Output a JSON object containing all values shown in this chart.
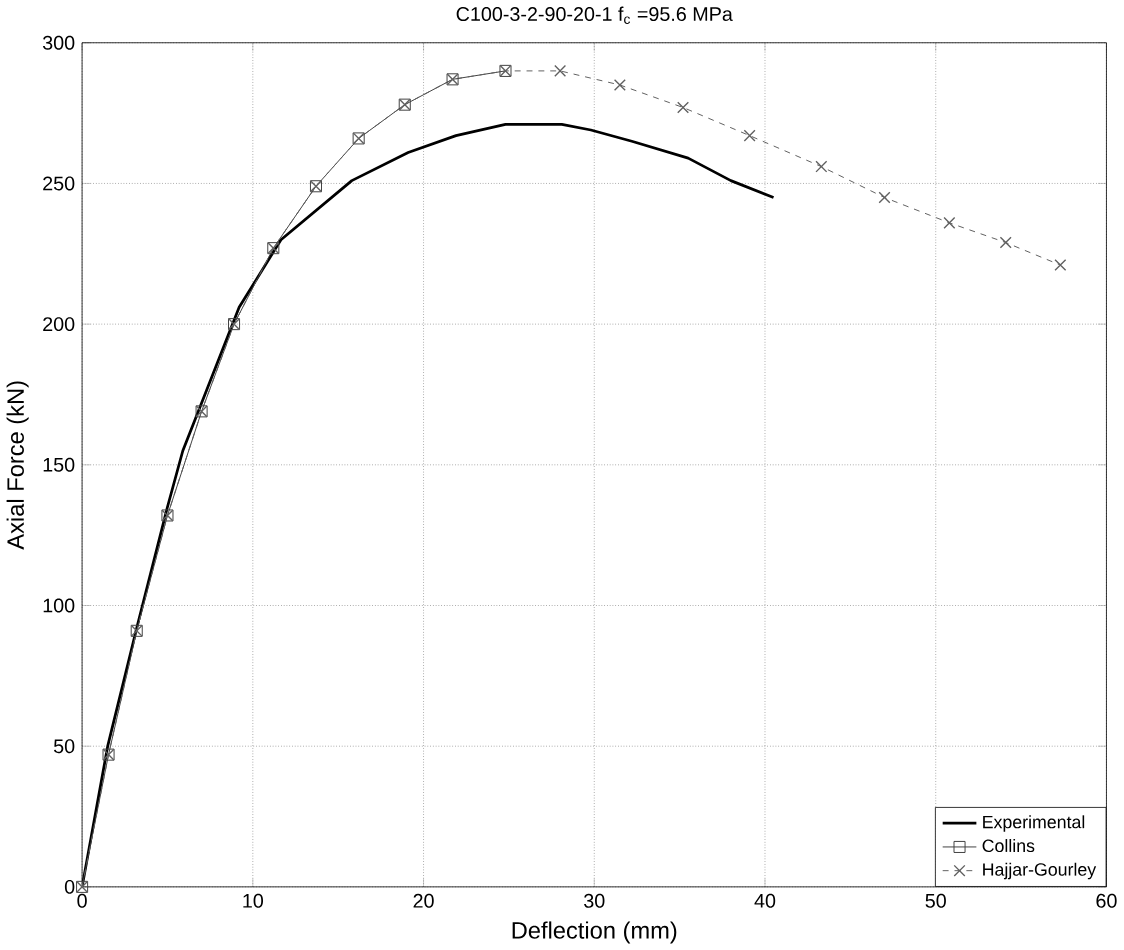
{
  "chart_data": {
    "type": "line",
    "title": "C100-3-2-90-20-1      f$_{c}$ =95.6 MPa",
    "xlabel": "Deflection (mm)",
    "ylabel": "Axial Force (kN)",
    "xlim": [
      0,
      60
    ],
    "ylim": [
      0,
      300
    ],
    "xticks": [
      0,
      10,
      20,
      30,
      40,
      50,
      60
    ],
    "yticks": [
      0,
      50,
      100,
      150,
      200,
      250,
      300
    ],
    "grid": true,
    "legend": "bottom right",
    "series": [
      {
        "name": "Experimental",
        "color": "#000000",
        "line_style": "solid",
        "marker": "none",
        "x": [
          0,
          1.5,
          3.2,
          5,
          5.9,
          7,
          9.2,
          11.65,
          15.8,
          19.1,
          21.9,
          24.8,
          28.1,
          29.8,
          32.2,
          35.5,
          38,
          40.5
        ],
        "values": [
          0,
          50,
          92,
          135,
          155,
          172,
          206,
          230,
          251,
          261,
          267,
          271,
          271,
          269,
          265,
          259,
          251,
          245
        ]
      },
      {
        "name": "Collins",
        "color": "#404040",
        "line_style": "solid",
        "marker": "square",
        "x": [
          0,
          1.55,
          3.2,
          5,
          7,
          8.9,
          11.2,
          13.7,
          16.2,
          18.9,
          21.7,
          24.8
        ],
        "values": [
          0,
          47,
          91,
          132,
          169,
          200,
          227,
          249,
          266,
          278,
          287,
          290
        ]
      },
      {
        "name": "Hajjar-Gourley",
        "color": "#606060",
        "line_style": "dashed",
        "marker": "cross",
        "x": [
          0,
          1.55,
          3.2,
          5,
          7,
          8.9,
          11.2,
          13.7,
          16.2,
          18.9,
          21.7,
          24.8,
          28,
          31.5,
          35.2,
          39.1,
          43.3,
          47,
          50.8,
          54.1,
          57.3
        ],
        "values": [
          0,
          47,
          91,
          132,
          169,
          200,
          227,
          249,
          266,
          278,
          287,
          290,
          290,
          285,
          277,
          267,
          256,
          245,
          236,
          229,
          221
        ]
      }
    ]
  }
}
